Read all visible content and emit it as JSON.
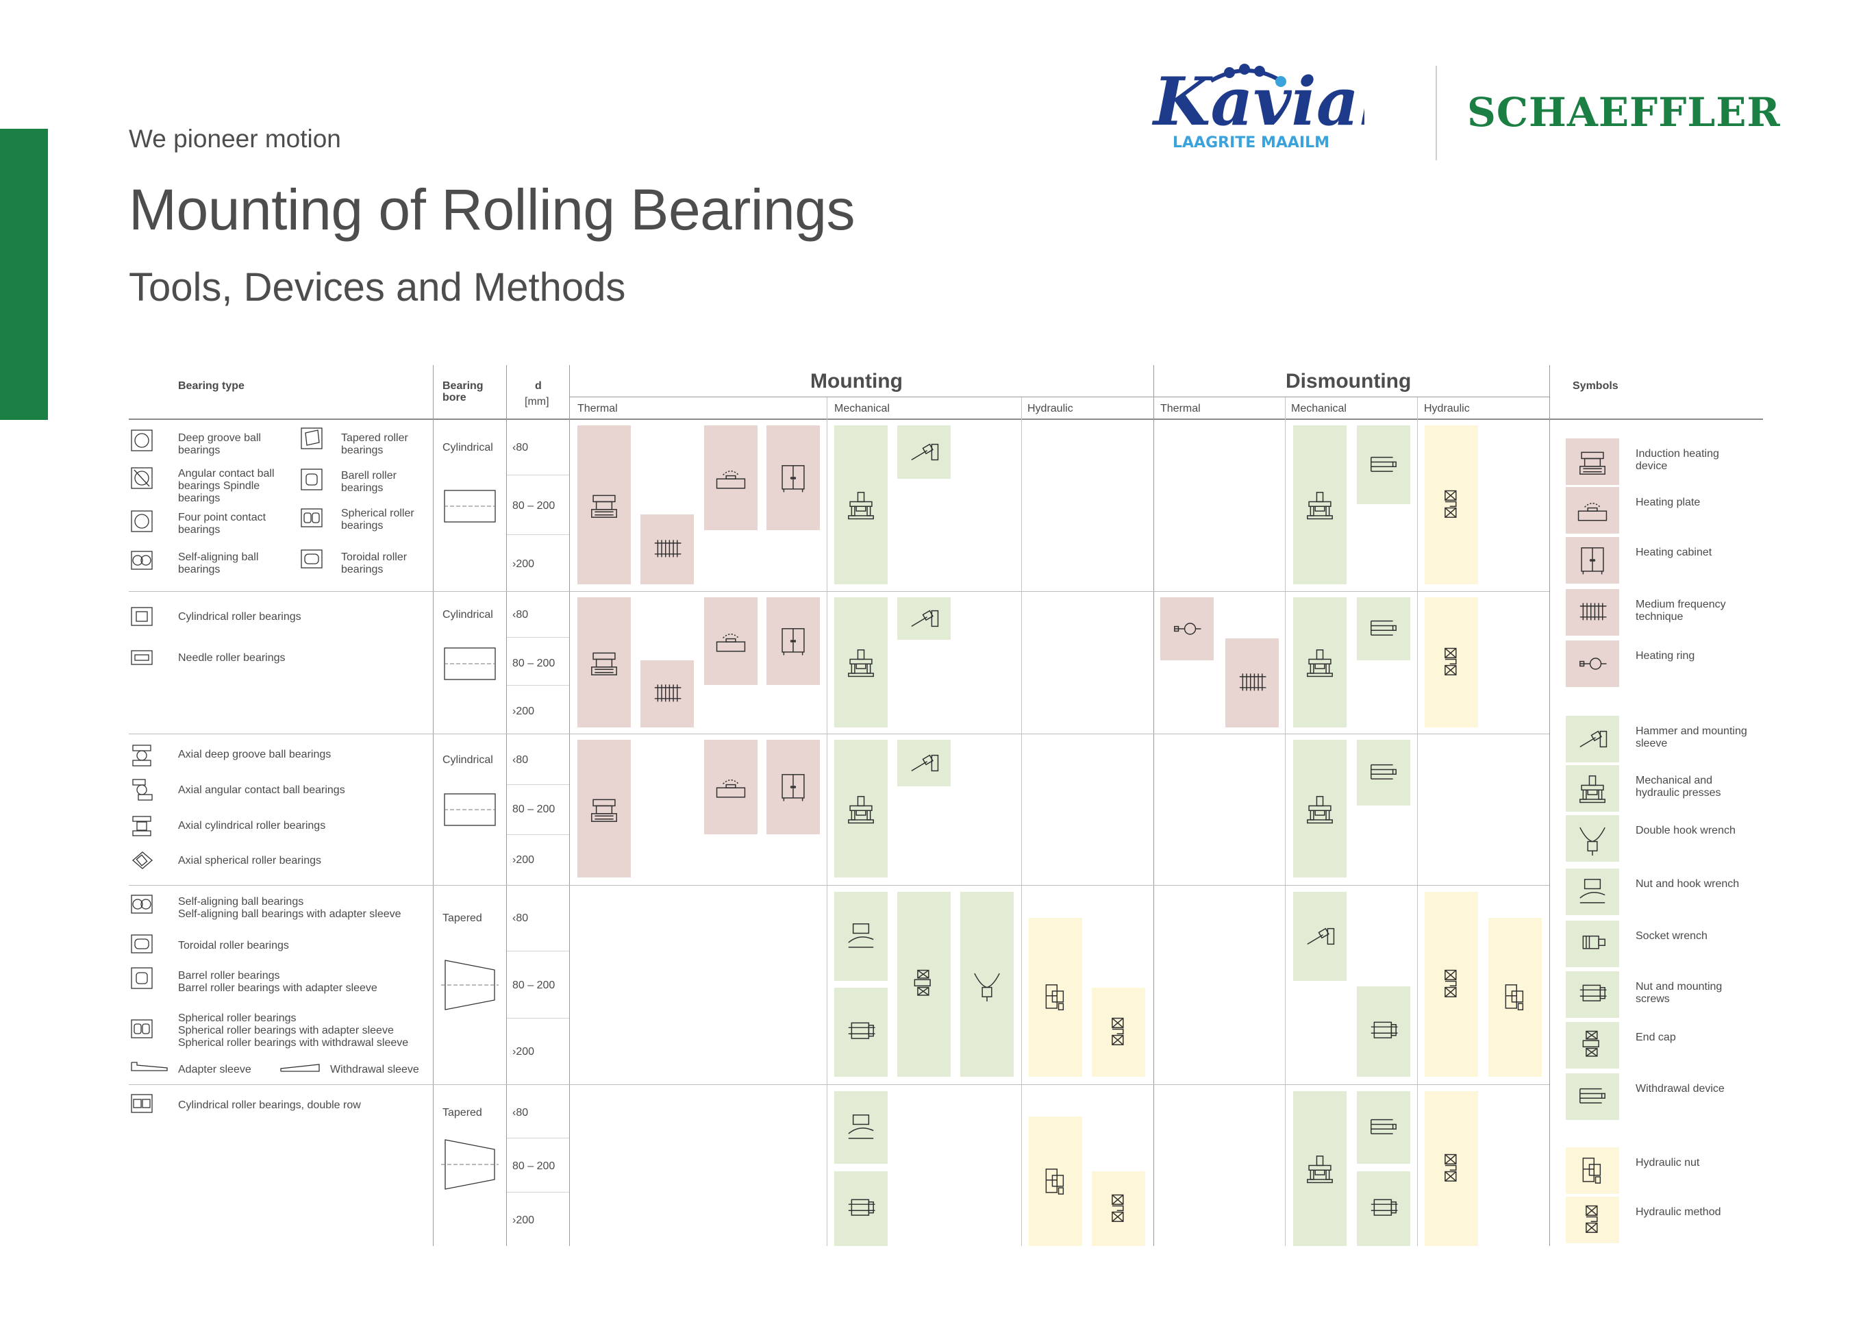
{
  "header": {
    "tagline": "We pioneer motion",
    "title": "Mounting of Rolling Bearings",
    "subtitle": "Tools, Devices and Methods",
    "kavial_wordmark": "Kavial",
    "kavial_caption": "LAAGRITE MAAILM",
    "schaeffler": "SCHAEFFLER"
  },
  "table_header": {
    "bearing_type": "Bearing type",
    "bearing_bore": "Bearing bore",
    "d": "d",
    "d_unit": "[mm]",
    "mounting": "Mounting",
    "dismounting": "Dismounting",
    "symbols": "Symbols",
    "thermal": "Thermal",
    "mechanical": "Mechanical",
    "hydraulic": "Hydraulic"
  },
  "groups": [
    {
      "types": [
        "Deep groove ball bearings",
        "Angular contact ball bearings Spindle bearings",
        "Four point contact bearings",
        "Self-aligning ball bearings",
        "Tapered roller bearings",
        "Barell roller bearings",
        "Spherical roller bearings",
        "Toroidal roller bearings"
      ],
      "bore": "Cylindrical",
      "sizes": [
        "‹80",
        "80 – 200",
        "›200"
      ]
    },
    {
      "types": [
        "Cylindrical roller bearings",
        "Needle roller bearings"
      ],
      "bore": "Cylindrical",
      "sizes": [
        "‹80",
        "80 – 200",
        "›200"
      ]
    },
    {
      "types": [
        "Axial deep groove ball bearings",
        "Axial angular contact ball bearings",
        "Axial cylindrical roller bearings",
        "Axial spherical roller bearings"
      ],
      "bore": "Cylindrical",
      "sizes": [
        "‹80",
        "80 – 200",
        "›200"
      ]
    },
    {
      "types": [
        "Self-aligning ball bearings",
        "Self-aligning ball bearings with adapter sleeve",
        "Toroidal roller bearings",
        "Barrel roller bearings",
        "Barrel roller bearings with adapter sleeve",
        "Spherical roller bearings",
        "Spherical roller bearings with adapter sleeve",
        "Spherical roller bearings with withdrawal sleeve",
        "Adapter sleeve",
        "Withdrawal sleeve"
      ],
      "bore": "Tapered",
      "sizes": [
        "‹80",
        "80 – 200",
        "›200"
      ]
    },
    {
      "types": [
        "Cylindrical roller bearings, double row"
      ],
      "bore": "Tapered",
      "sizes": [
        "‹80",
        "80 – 200",
        "›200"
      ]
    }
  ],
  "symbols": [
    {
      "label": "Induction heating device",
      "color": "#e8d5d1",
      "icon": "induction-heater-icon"
    },
    {
      "label": "Heating plate",
      "color": "#e8d5d1",
      "icon": "heating-plate-icon"
    },
    {
      "label": "Heating cabinet",
      "color": "#e8d5d1",
      "icon": "heating-cabinet-icon"
    },
    {
      "label": "Medium frequency technique",
      "color": "#e8d5d1",
      "icon": "medium-frequency-icon"
    },
    {
      "label": "Heating ring",
      "color": "#e8d5d1",
      "icon": "heating-ring-icon"
    },
    {
      "label": "Hammer and mounting sleeve",
      "color": "#e2ecd5",
      "icon": "hammer-icon"
    },
    {
      "label": "Mechanical and hydraulic presses",
      "color": "#e2ecd5",
      "icon": "press-icon"
    },
    {
      "label": "Double hook wrench",
      "color": "#e2ecd5",
      "icon": "double-hook-wrench-icon"
    },
    {
      "label": "Nut and hook wrench",
      "color": "#e2ecd5",
      "icon": "hook-wrench-icon"
    },
    {
      "label": "Socket wrench",
      "color": "#e2ecd5",
      "icon": "socket-wrench-icon"
    },
    {
      "label": "Nut and mounting screws",
      "color": "#e2ecd5",
      "icon": "mounting-screws-icon"
    },
    {
      "label": "End cap",
      "color": "#e2ecd5",
      "icon": "end-cap-icon"
    },
    {
      "label": "Withdrawal device",
      "color": "#e2ecd5",
      "icon": "withdrawal-device-icon"
    },
    {
      "label": "Hydraulic nut",
      "color": "#fdf6d9",
      "icon": "hydraulic-nut-icon"
    },
    {
      "label": "Hydraulic method",
      "color": "#fdf6d9",
      "icon": "hydraulic-method-icon"
    }
  ]
}
